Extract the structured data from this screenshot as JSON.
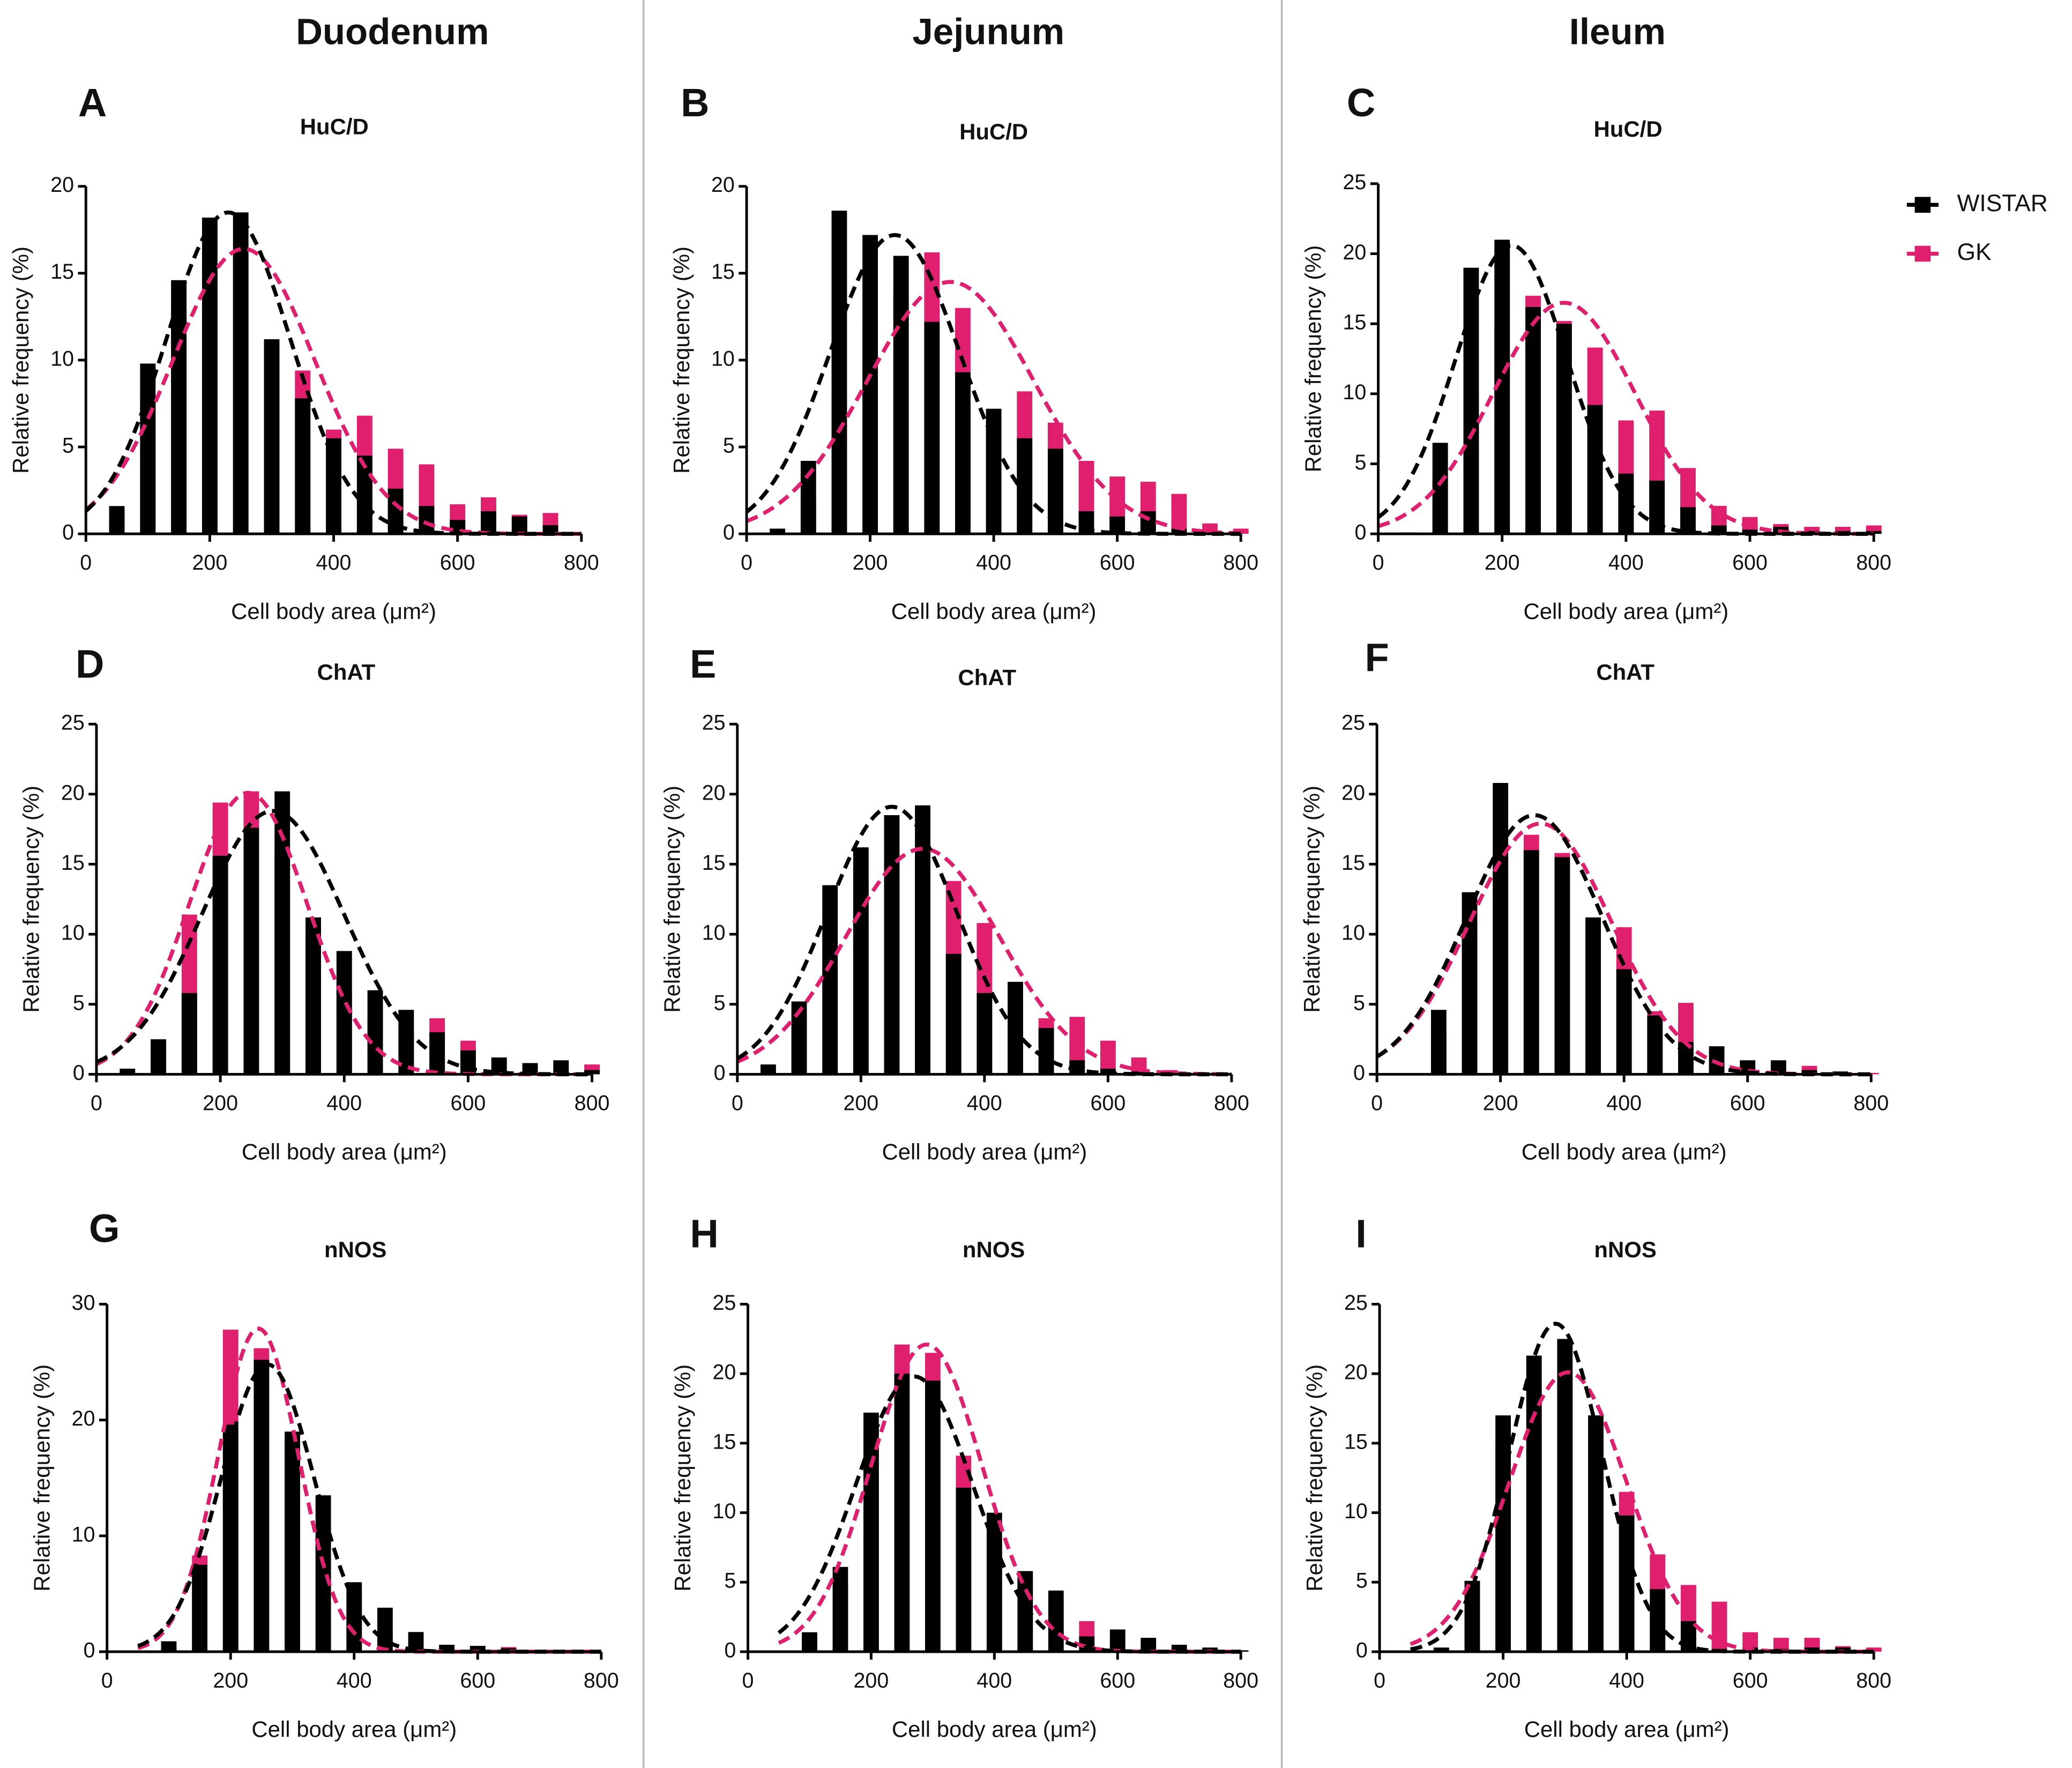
{
  "column_headers": [
    "Duodenum",
    "Jejunum",
    "Ileum"
  ],
  "chart_data": [
    {
      "type": "bar",
      "panel": "A",
      "title": "HuC/D",
      "x_label": "Cell body area (μm²)",
      "y_label": "Relative frequency (%)",
      "x": [
        50,
        100,
        150,
        200,
        250,
        300,
        350,
        400,
        450,
        500,
        550,
        600,
        650,
        700,
        750,
        800
      ],
      "xlim": [
        0,
        800
      ],
      "xticks": [
        0,
        200,
        400,
        600,
        800
      ],
      "ylim": [
        0,
        20
      ],
      "yticks": [
        0,
        5,
        10,
        15,
        20
      ],
      "fit_xlim": [
        0,
        800
      ],
      "series": [
        {
          "color": "#000000",
          "values": [
            1.6,
            9.8,
            14.6,
            18.2,
            18.5,
            11.2,
            7.8,
            5.5,
            4.5,
            2.6,
            1.6,
            0.8,
            1.3,
            1.0,
            0.5,
            0
          ],
          "fit": {
            "mean": 230,
            "sd": 100,
            "peak": 18.5
          }
        },
        {
          "color": "#e0206e",
          "values": [
            1.0,
            8,
            13,
            15.5,
            16,
            11,
            9.4,
            6.0,
            6.8,
            4.9,
            4.0,
            1.7,
            2.1,
            1.1,
            1.2,
            0
          ],
          "fit": {
            "mean": 255,
            "sd": 115,
            "peak": 16.4
          }
        }
      ]
    },
    {
      "type": "bar",
      "panel": "B",
      "title": "HuC/D",
      "x_label": "Cell body area (μm²)",
      "y_label": "Relative frequency (%)",
      "x": [
        50,
        100,
        150,
        200,
        250,
        300,
        350,
        400,
        450,
        500,
        550,
        600,
        650,
        700,
        750,
        800
      ],
      "xlim": [
        0,
        800
      ],
      "xticks": [
        0,
        200,
        400,
        600,
        800
      ],
      "ylim": [
        0,
        20
      ],
      "yticks": [
        0,
        5,
        10,
        15,
        20
      ],
      "fit_xlim": [
        0,
        800
      ],
      "series": [
        {
          "color": "#000000",
          "values": [
            0.3,
            4.2,
            18.6,
            17.2,
            16.0,
            12.2,
            9.3,
            7.2,
            5.5,
            4.9,
            1.3,
            1.0,
            1.3,
            0.3,
            0,
            0
          ],
          "fit": {
            "mean": 240,
            "sd": 105,
            "peak": 17.2
          }
        },
        {
          "color": "#e0206e",
          "values": [
            0.1,
            2,
            8,
            12,
            14,
            16.2,
            13.0,
            7.0,
            8.2,
            6.4,
            4.2,
            3.3,
            3.0,
            2.3,
            0.6,
            0.3
          ],
          "fit": {
            "mean": 330,
            "sd": 135,
            "peak": 14.5
          }
        }
      ]
    },
    {
      "type": "bar",
      "panel": "C",
      "title": "HuC/D",
      "x_label": "Cell body area (μm²)",
      "y_label": "Relative frequency (%)",
      "x": [
        50,
        100,
        150,
        200,
        250,
        300,
        350,
        400,
        450,
        500,
        550,
        600,
        650,
        700,
        750,
        800
      ],
      "xlim": [
        0,
        800
      ],
      "xticks": [
        0,
        200,
        400,
        600,
        800
      ],
      "ylim": [
        0,
        25
      ],
      "yticks": [
        0,
        5,
        10,
        15,
        20,
        25
      ],
      "fit_xlim": [
        0,
        800
      ],
      "legend": "right",
      "series": [
        {
          "name": "WISTAR",
          "color": "#000000",
          "values": [
            0.1,
            6.5,
            19,
            21,
            16.2,
            15,
            9.2,
            4.3,
            3.8,
            1.9,
            0.6,
            0.3,
            0.5,
            0.2,
            0.2,
            0.2
          ],
          "fit": {
            "mean": 215,
            "sd": 90,
            "peak": 20.6
          }
        },
        {
          "name": "GK",
          "color": "#e0206e",
          "values": [
            0.1,
            4,
            10,
            15,
            17,
            15.2,
            13.3,
            8.1,
            8.8,
            4.7,
            2.0,
            1.2,
            0.7,
            0.5,
            0.5,
            0.6
          ],
          "fit": {
            "mean": 300,
            "sd": 115,
            "peak": 16.5
          }
        }
      ]
    },
    {
      "type": "bar",
      "panel": "D",
      "title": "ChAT",
      "x_label": "Cell body area (μm²)",
      "y_label": "Relative frequency (%)",
      "x": [
        50,
        100,
        150,
        200,
        250,
        300,
        350,
        400,
        450,
        500,
        550,
        600,
        650,
        700,
        750,
        800
      ],
      "xlim": [
        0,
        800
      ],
      "xticks": [
        0,
        200,
        400,
        600,
        800
      ],
      "ylim": [
        0,
        25
      ],
      "yticks": [
        0,
        5,
        10,
        15,
        20,
        25
      ],
      "fit_xlim": [
        0,
        800
      ],
      "series": [
        {
          "color": "#000000",
          "values": [
            0.4,
            2.5,
            5.8,
            15.6,
            17.6,
            20.2,
            11.2,
            8.8,
            6.0,
            4.6,
            3.0,
            1.7,
            1.2,
            0.8,
            1.0,
            0.3
          ],
          "fit": {
            "mean": 285,
            "sd": 115,
            "peak": 18.8
          }
        },
        {
          "color": "#e0206e",
          "values": [
            0.2,
            2.2,
            11.4,
            19.4,
            20.2,
            16,
            10,
            6,
            4,
            3,
            4.0,
            2.4,
            1.0,
            0.6,
            0.4,
            0.7
          ],
          "fit": {
            "mean": 245,
            "sd": 95,
            "peak": 20.1
          }
        }
      ]
    },
    {
      "type": "bar",
      "panel": "E",
      "title": "ChAT",
      "x_label": "Cell body area (μm²)",
      "y_label": "Relative frequency (%)",
      "x": [
        50,
        100,
        150,
        200,
        250,
        300,
        350,
        400,
        450,
        500,
        550,
        600,
        650,
        700,
        750,
        800
      ],
      "xlim": [
        0,
        800
      ],
      "xticks": [
        0,
        200,
        400,
        600,
        800
      ],
      "ylim": [
        0,
        25
      ],
      "yticks": [
        0,
        5,
        10,
        15,
        20,
        25
      ],
      "fit_xlim": [
        0,
        800
      ],
      "series": [
        {
          "color": "#000000",
          "values": [
            0.7,
            5.2,
            13.5,
            16.2,
            18.5,
            19.2,
            8.6,
            5.8,
            6.6,
            3.3,
            1.0,
            0.4,
            0.2,
            0.1,
            0,
            0
          ],
          "fit": {
            "mean": 250,
            "sd": 105,
            "peak": 19.1
          }
        },
        {
          "color": "#e0206e",
          "values": [
            0.3,
            4.5,
            10,
            14,
            16,
            16,
            13.8,
            10.8,
            5,
            4.0,
            4.1,
            2.4,
            1.2,
            0.3,
            0.1,
            0
          ],
          "fit": {
            "mean": 300,
            "sd": 125,
            "peak": 16.1
          }
        }
      ]
    },
    {
      "type": "bar",
      "panel": "F",
      "title": "ChAT",
      "x_label": "Cell body area (μm²)",
      "y_label": "Relative frequency (%)",
      "x": [
        50,
        100,
        150,
        200,
        250,
        300,
        350,
        400,
        450,
        500,
        550,
        600,
        650,
        700,
        750,
        800
      ],
      "xlim": [
        0,
        800
      ],
      "xticks": [
        0,
        200,
        400,
        600,
        800
      ],
      "ylim": [
        0,
        25
      ],
      "yticks": [
        0,
        5,
        10,
        15,
        20,
        25
      ],
      "fit_xlim": [
        0,
        800
      ],
      "series": [
        {
          "color": "#000000",
          "values": [
            0,
            4.6,
            13,
            20.8,
            16,
            15.5,
            11.2,
            7.5,
            4.2,
            2.3,
            2.0,
            1.0,
            1.0,
            0.3,
            0.2,
            0
          ],
          "fit": {
            "mean": 255,
            "sd": 110,
            "peak": 18.5
          }
        },
        {
          "color": "#e0206e",
          "values": [
            0,
            3,
            11,
            16,
            17.1,
            15.8,
            11,
            10.5,
            4.5,
            5.1,
            1.0,
            0.5,
            0.3,
            0.6,
            0.2,
            0.1
          ],
          "fit": {
            "mean": 265,
            "sd": 115,
            "peak": 17.9
          }
        }
      ]
    },
    {
      "type": "bar",
      "panel": "G",
      "title": "nNOS",
      "x_label": "Cell body area (μm²)",
      "y_label": "Relative frequency (%)",
      "x": [
        50,
        100,
        150,
        200,
        250,
        300,
        350,
        400,
        450,
        500,
        550,
        600,
        650,
        700,
        750,
        800
      ],
      "xlim": [
        0,
        800
      ],
      "xticks": [
        0,
        200,
        400,
        600,
        800
      ],
      "ylim": [
        0,
        30
      ],
      "yticks": [
        0,
        10,
        20,
        30
      ],
      "fit_xlim": [
        50,
        800
      ],
      "series": [
        {
          "color": "#000000",
          "values": [
            0,
            0.9,
            7.5,
            19.6,
            25.2,
            19,
            13.5,
            6.0,
            3.8,
            1.7,
            0.6,
            0.5,
            0.3,
            0,
            0,
            0
          ],
          "fit": {
            "mean": 260,
            "sd": 75,
            "peak": 24.8
          }
        },
        {
          "color": "#e0206e",
          "values": [
            0,
            0.4,
            8.3,
            27.8,
            26.2,
            18.5,
            10,
            5,
            1.5,
            0.8,
            0.3,
            0.5,
            0.4,
            0,
            0,
            0
          ],
          "fit": {
            "mean": 245,
            "sd": 65,
            "peak": 27.9
          }
        }
      ]
    },
    {
      "type": "bar",
      "panel": "H",
      "title": "nNOS",
      "x_label": "Cell body area (μm²)",
      "y_label": "Relative frequency (%)",
      "x": [
        50,
        100,
        150,
        200,
        250,
        300,
        350,
        400,
        450,
        500,
        550,
        600,
        650,
        700,
        750,
        800
      ],
      "xlim": [
        0,
        800
      ],
      "xticks": [
        0,
        200,
        400,
        600,
        800
      ],
      "ylim": [
        0,
        25
      ],
      "yticks": [
        0,
        5,
        10,
        15,
        20,
        25
      ],
      "fit_xlim": [
        50,
        800
      ],
      "series": [
        {
          "color": "#000000",
          "values": [
            0,
            1.4,
            6.1,
            17.2,
            20.0,
            19.5,
            11.8,
            10.0,
            5.8,
            4.4,
            1.1,
            1.6,
            1.0,
            0.5,
            0.3,
            0.1
          ],
          "fit": {
            "mean": 270,
            "sd": 95,
            "peak": 19.8
          }
        },
        {
          "color": "#e0206e",
          "values": [
            0,
            1,
            5,
            16,
            22.1,
            21.5,
            14.1,
            8,
            5,
            3.5,
            2.2,
            1.2,
            0.6,
            0.3,
            0.2,
            0
          ],
          "fit": {
            "mean": 290,
            "sd": 90,
            "peak": 22.1
          }
        }
      ]
    },
    {
      "type": "bar",
      "panel": "I",
      "title": "nNOS",
      "x_label": "Cell body area (μm²)",
      "y_label": "Relative frequency (%)",
      "x": [
        50,
        100,
        150,
        200,
        250,
        300,
        350,
        400,
        450,
        500,
        550,
        600,
        650,
        700,
        750,
        800
      ],
      "xlim": [
        0,
        800
      ],
      "xticks": [
        0,
        200,
        400,
        600,
        800
      ],
      "ylim": [
        0,
        25
      ],
      "yticks": [
        0,
        5,
        10,
        15,
        20,
        25
      ],
      "fit_xlim": [
        50,
        800
      ],
      "series": [
        {
          "color": "#000000",
          "values": [
            0,
            0.3,
            5.1,
            17.0,
            21.3,
            22.5,
            17.0,
            9.8,
            4.5,
            2.2,
            0.2,
            0.3,
            0.2,
            0.3,
            0.3,
            0
          ],
          "fit": {
            "mean": 285,
            "sd": 75,
            "peak": 23.6
          }
        },
        {
          "color": "#e0206e",
          "values": [
            0,
            0.2,
            5,
            15,
            19,
            20,
            16,
            11.5,
            7.0,
            4.8,
            3.6,
            1.4,
            1.0,
            1.0,
            0.4,
            0.3
          ],
          "fit": {
            "mean": 305,
            "sd": 95,
            "peak": 20.1
          }
        }
      ]
    }
  ]
}
